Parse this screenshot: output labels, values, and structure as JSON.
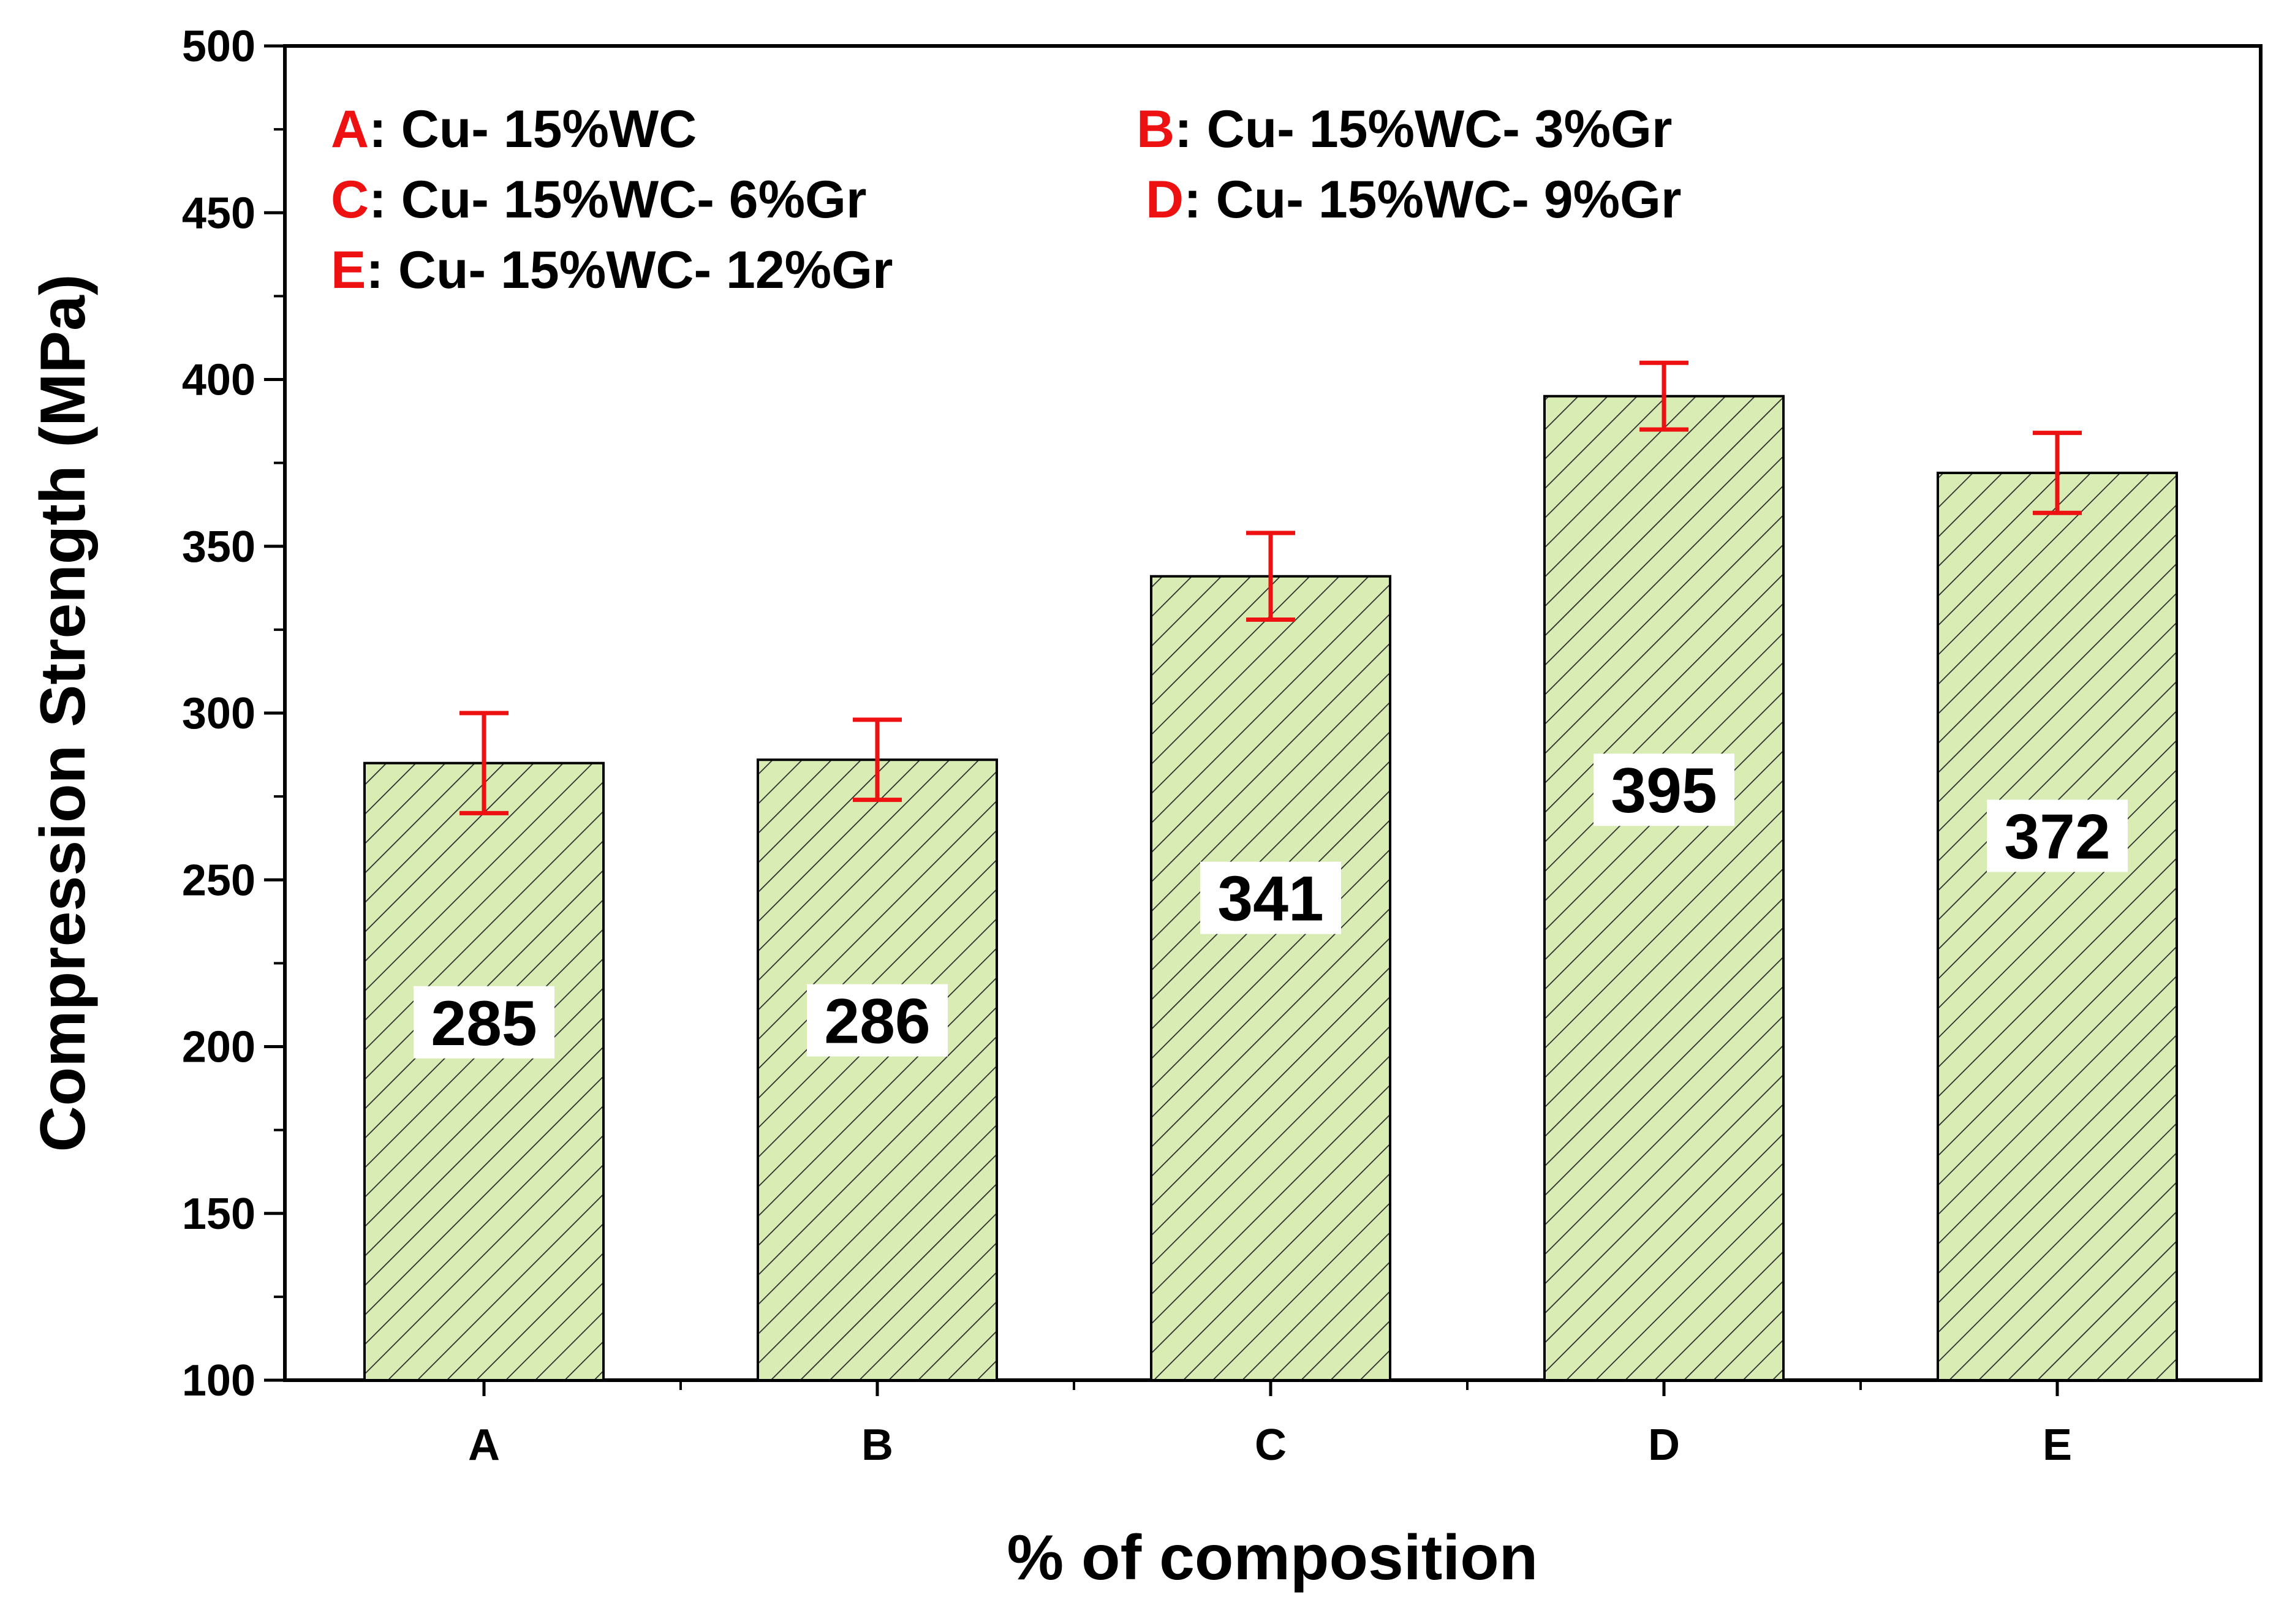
{
  "chart_data": {
    "type": "bar",
    "title": "",
    "xlabel": "% of composition",
    "ylabel": "Compression Strength (MPa)",
    "categories": [
      "A",
      "B",
      "C",
      "D",
      "E"
    ],
    "values": [
      285,
      286,
      341,
      395,
      372
    ],
    "value_labels": [
      "285",
      "286",
      "341",
      "395",
      "372"
    ],
    "error_upper": [
      300,
      298,
      354,
      405,
      384
    ],
    "error_lower": [
      270,
      274,
      328,
      385,
      360
    ],
    "ylim": [
      100,
      500
    ],
    "yticks": [
      100,
      150,
      200,
      250,
      300,
      350,
      400,
      450,
      500
    ],
    "ytick_labels": [
      "100",
      "150",
      "200",
      "250",
      "300",
      "350",
      "400",
      "450",
      "500"
    ],
    "grid": false,
    "legend_placement": "top-left",
    "legend": [
      {
        "key": "A",
        "text": ": Cu- 15%WC"
      },
      {
        "key": "B",
        "text": ": Cu- 15%WC- 3%Gr"
      },
      {
        "key": "C",
        "text": ": Cu- 15%WC- 6%Gr"
      },
      {
        "key": "D",
        "text": ": Cu- 15%WC- 9%Gr"
      },
      {
        "key": "E",
        "text": ": Cu- 15%WC- 12%Gr"
      }
    ],
    "colors": {
      "bar_fill": "#d8ecb4",
      "hatch": "#2a2a2a",
      "error_bar": "#ee1111",
      "legend_key": "#ee1111",
      "axis": "#000000"
    }
  }
}
